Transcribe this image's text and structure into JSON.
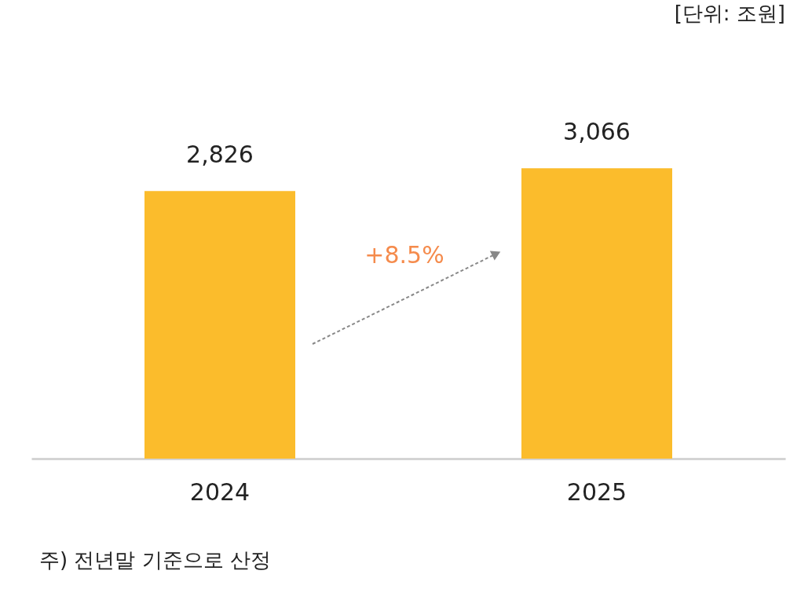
{
  "chart_data": {
    "type": "bar",
    "categories": [
      "2024",
      "2025"
    ],
    "values": [
      2826,
      3066
    ],
    "color": "#fbbc2c",
    "value_labels": [
      "2,826",
      "3,066"
    ],
    "grid": false,
    "annotations": [
      "[단위: 조원]",
      "+8.5%",
      "주) 전년말 기준으로 산정"
    ]
  }
}
